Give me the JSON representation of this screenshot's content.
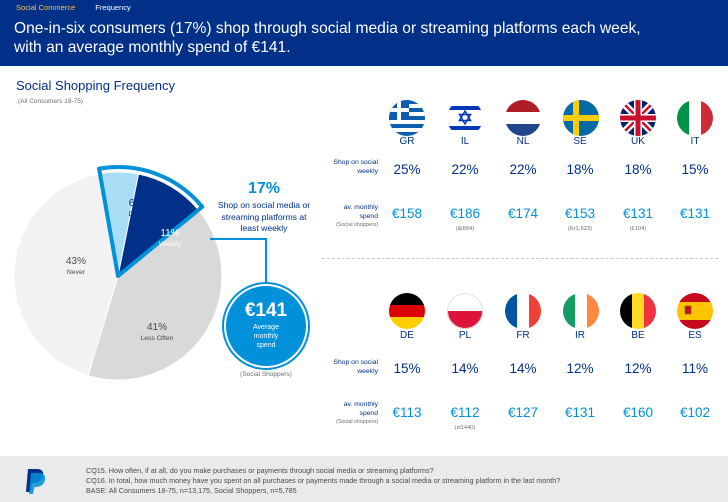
{
  "header": {
    "crumb_section": "Social Commerce",
    "crumb_page": "Frequency",
    "headline_line1": "One-in-six consumers (17%) shop through social media or streaming platforms each week,",
    "headline_line2": "with an average monthly spend of €141."
  },
  "section": {
    "title": "Social Shopping Frequency",
    "subtitle": "(All Consumers 18-75)"
  },
  "highlight": {
    "pct": "17%",
    "desc_line1": "Shop on social media or",
    "desc_line2": "streaming platforms at",
    "desc_line3": "least weekly",
    "spend_value": "€141",
    "spend_line1": "Average",
    "spend_line2": "monthly",
    "spend_line3": "spend",
    "spend_base": "(Social Shoppers)"
  },
  "chart_data": {
    "type": "pie",
    "slices": [
      {
        "label": "Daily",
        "value": 6,
        "pct": "6%",
        "color": "#a9dcf5"
      },
      {
        "label": "Weekly",
        "value": 11,
        "pct": "11%",
        "color": "#003087"
      },
      {
        "label": "Less Often",
        "value": 41,
        "pct": "41%",
        "color": "#d9d9d9"
      },
      {
        "label": "Never",
        "value": 43,
        "pct": "43%",
        "color": "#f2f2f2"
      }
    ],
    "highlight_color": "#0091da"
  },
  "row_labels": {
    "shop_line1": "Shop on social",
    "shop_line2": "weekly",
    "spend_line1": "av. monthly",
    "spend_line2": "spend",
    "spend_base": "(Social shoppers)"
  },
  "countries_top": [
    {
      "code": "GR",
      "flag": "greece-flag-icon",
      "pct": "25%",
      "spend": "€158",
      "local": ""
    },
    {
      "code": "IL",
      "flag": "israel-flag-icon",
      "pct": "22%",
      "spend": "€186",
      "local": "(₪894)"
    },
    {
      "code": "NL",
      "flag": "netherlands-flag-icon",
      "pct": "22%",
      "spend": "€174",
      "local": ""
    },
    {
      "code": "SE",
      "flag": "sweden-flag-icon",
      "pct": "18%",
      "spend": "€153",
      "local": "(Kr1,523)"
    },
    {
      "code": "UK",
      "flag": "uk-flag-icon",
      "pct": "18%",
      "spend": "€131",
      "local": "(£104)"
    },
    {
      "code": "IT",
      "flag": "italy-flag-icon",
      "pct": "15%",
      "spend": "€131",
      "local": ""
    }
  ],
  "countries_bottom": [
    {
      "code": "DE",
      "flag": "germany-flag-icon",
      "pct": "15%",
      "spend": "€113",
      "local": ""
    },
    {
      "code": "PL",
      "flag": "poland-flag-icon",
      "pct": "14%",
      "spend": "€112",
      "local": "(zł1440)"
    },
    {
      "code": "FR",
      "flag": "france-flag-icon",
      "pct": "14%",
      "spend": "€127",
      "local": ""
    },
    {
      "code": "IR",
      "flag": "ireland-flag-icon",
      "pct": "12%",
      "spend": "€131",
      "local": ""
    },
    {
      "code": "BE",
      "flag": "belgium-flag-icon",
      "pct": "12%",
      "spend": "€160",
      "local": ""
    },
    {
      "code": "ES",
      "flag": "spain-flag-icon",
      "pct": "11%",
      "spend": "€102",
      "local": ""
    }
  ],
  "footer": {
    "logo": "paypal-logo-icon",
    "q1": "CQ15. How often, if at all, do you make purchases or payments through social media or streaming platforms?",
    "q2": "CQ16. In total, how much money have you spent on all purchases or payments made through a social media or streaming platform in the last month?",
    "base": "BASE: All Consumers 18-75, n=13,175, Social Shoppers, n=5,785"
  }
}
